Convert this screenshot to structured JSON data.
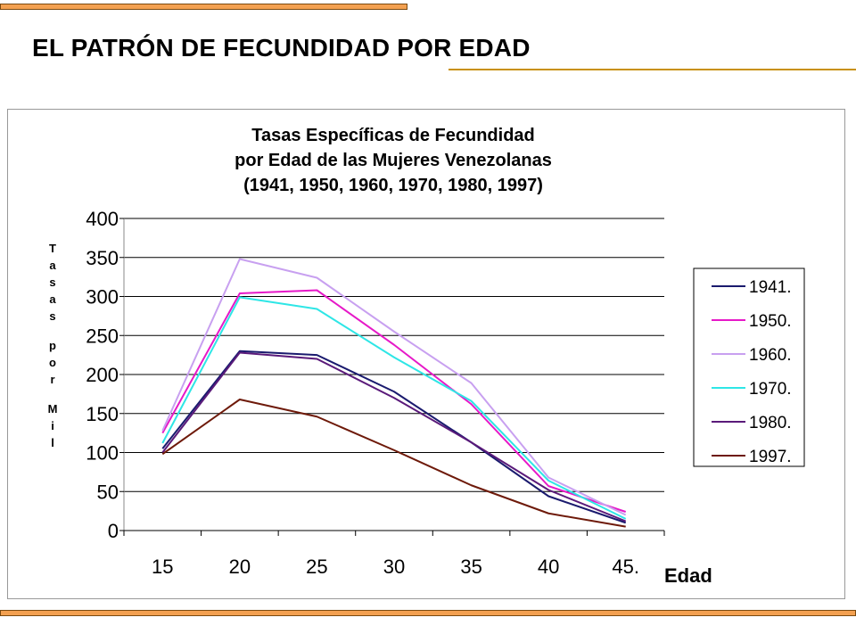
{
  "slide": {
    "title": "EL PATRÓN DE FECUNDIDAD POR EDAD"
  },
  "colors": {
    "accent_bar": "#f3a050",
    "title_rule": "#c8900a"
  },
  "chart_data": {
    "type": "line",
    "title_lines": [
      "Tasas Específicas de Fecundidad",
      "por Edad de las Mujeres Venezolanas",
      "(1941, 1950, 1960, 1970, 1980, 1997)"
    ],
    "xlabel": "Edad",
    "ylabel": "Tasas por Mil",
    "categories": [
      "15",
      "20",
      "25",
      "30",
      "35",
      "40",
      "45."
    ],
    "ylim": [
      0,
      400
    ],
    "yticks": [
      "0",
      "50",
      "100",
      "150",
      "200",
      "250",
      "300",
      "350",
      "400"
    ],
    "grid": "horizontal",
    "legend_position": "right",
    "series": [
      {
        "name": "1941.",
        "color": "#1a1a6e",
        "values": [
          105,
          230,
          225,
          178,
          113,
          44,
          10
        ]
      },
      {
        "name": "1950.",
        "color": "#e619c8",
        "values": [
          125,
          304,
          308,
          238,
          162,
          57,
          24
        ]
      },
      {
        "name": "1960.",
        "color": "#c8a0f0",
        "values": [
          128,
          348,
          324,
          255,
          189,
          68,
          20
        ]
      },
      {
        "name": "1970.",
        "color": "#2ee6e6",
        "values": [
          112,
          299,
          284,
          222,
          166,
          64,
          15
        ]
      },
      {
        "name": "1980.",
        "color": "#5a1a7a",
        "values": [
          100,
          228,
          220,
          170,
          113,
          52,
          12
        ]
      },
      {
        "name": "1997.",
        "color": "#6e1a0a",
        "values": [
          98,
          168,
          146,
          103,
          58,
          22,
          5
        ]
      }
    ]
  }
}
